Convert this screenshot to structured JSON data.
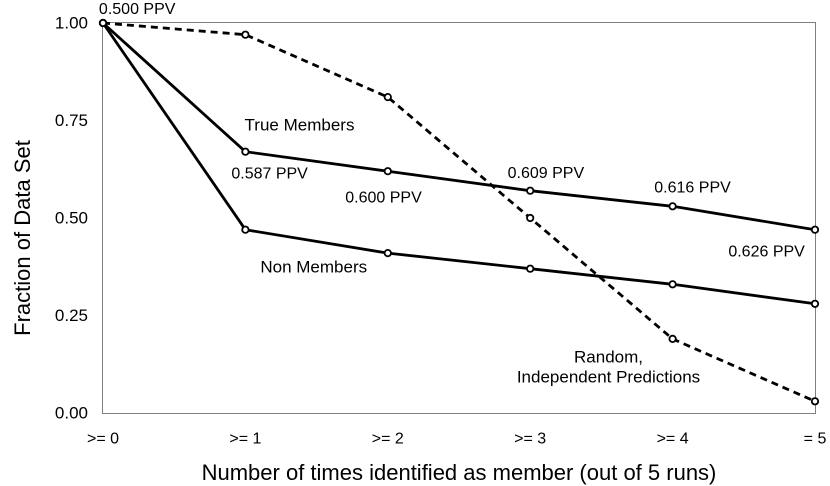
{
  "figure": {
    "background": "#ffffff",
    "frame_color": "#7f7f7f",
    "series_color": "#000000",
    "marker_fill": "#ffffff"
  },
  "chart_data": {
    "type": "line",
    "title": "",
    "xlabel": "Number of times identified as member (out of 5 runs)",
    "ylabel": "Fraction of Data Set",
    "x_categories": [
      ">= 0",
      ">= 1",
      ">= 2",
      ">= 3",
      ">= 4",
      "= 5"
    ],
    "x_values": [
      0,
      1,
      2,
      3,
      4,
      5
    ],
    "ylim": [
      0.0,
      1.0
    ],
    "grid": false,
    "legend_position": "inline-labels",
    "y_ticks": [
      {
        "label": "1.00",
        "value": 1.0
      },
      {
        "label": "0.75",
        "value": 0.75
      },
      {
        "label": "0.50",
        "value": 0.5
      },
      {
        "label": "0.25",
        "value": 0.25
      },
      {
        "label": "0.00",
        "value": 0.0
      }
    ],
    "series": [
      {
        "name": "True Members",
        "style": "solid",
        "marker": "open-circle",
        "values": [
          1.0,
          0.67,
          0.62,
          0.57,
          0.53,
          0.47
        ]
      },
      {
        "name": "Non Members",
        "style": "solid",
        "marker": "open-circle",
        "values": [
          1.0,
          0.47,
          0.41,
          0.37,
          0.33,
          0.28
        ]
      },
      {
        "name": "Random, Independent Predictions",
        "style": "dashed",
        "marker": "open-circle",
        "values": [
          1.0,
          0.97,
          0.81,
          0.5,
          0.19,
          0.03
        ]
      }
    ],
    "annotations": [
      {
        "text": "0.500 PPV",
        "x": 0.24,
        "y": 1.035
      },
      {
        "text": "0.587 PPV",
        "x": 1.17,
        "y": 0.613
      },
      {
        "text": "0.600 PPV",
        "x": 1.97,
        "y": 0.551
      },
      {
        "text": "0.609 PPV",
        "x": 3.11,
        "y": 0.614
      },
      {
        "text": "0.616 PPV",
        "x": 4.14,
        "y": 0.577
      },
      {
        "text": "0.626 PPV",
        "x": 4.66,
        "y": 0.413
      }
    ],
    "series_labels": [
      {
        "lines": [
          "True Members"
        ],
        "x": 1.38,
        "y": 0.738
      },
      {
        "lines": [
          "Non Members"
        ],
        "x": 1.48,
        "y": 0.374
      },
      {
        "lines": [
          "Random,",
          "Independent Predictions"
        ],
        "x": 3.55,
        "y": 0.144
      }
    ]
  }
}
